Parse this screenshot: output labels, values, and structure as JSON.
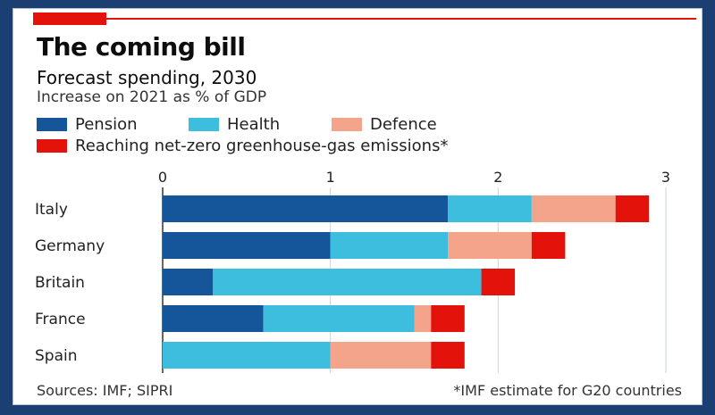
{
  "title": "The coming bill",
  "subtitle": "Forecast spending, 2030",
  "subnote": "Increase on 2021 as % of GDP",
  "legend": [
    {
      "label": "Pension",
      "color": "#15569a"
    },
    {
      "label": "Health",
      "color": "#3ebede"
    },
    {
      "label": "Defence",
      "color": "#f4a48a"
    },
    {
      "label": "Reaching net-zero greenhouse-gas emissions*",
      "color": "#e3120b"
    }
  ],
  "source": "Sources: IMF; SIPRI",
  "footnote": "*IMF estimate for G20 countries",
  "colors": {
    "accent_red": "#e3120b",
    "frame": "#1b3f73"
  },
  "chart_data": {
    "type": "bar",
    "orientation": "horizontal",
    "stacked": true,
    "categories": [
      "Italy",
      "Germany",
      "Britain",
      "France",
      "Spain"
    ],
    "x_ticks": [
      "0",
      "1",
      "2",
      "3"
    ],
    "xlim": [
      0,
      3
    ],
    "grid": true,
    "legend_position": "top",
    "series": [
      {
        "name": "Pension",
        "color": "#15569a",
        "values": [
          1.7,
          1.0,
          0.3,
          0.6,
          0.0
        ]
      },
      {
        "name": "Health",
        "color": "#3ebede",
        "values": [
          0.5,
          0.7,
          1.6,
          0.9,
          1.0
        ]
      },
      {
        "name": "Defence",
        "color": "#f4a48a",
        "values": [
          0.5,
          0.5,
          0.0,
          0.1,
          0.6
        ]
      },
      {
        "name": "Reaching net-zero greenhouse-gas emissions*",
        "color": "#e3120b",
        "values": [
          0.2,
          0.2,
          0.2,
          0.2,
          0.2
        ]
      }
    ]
  }
}
